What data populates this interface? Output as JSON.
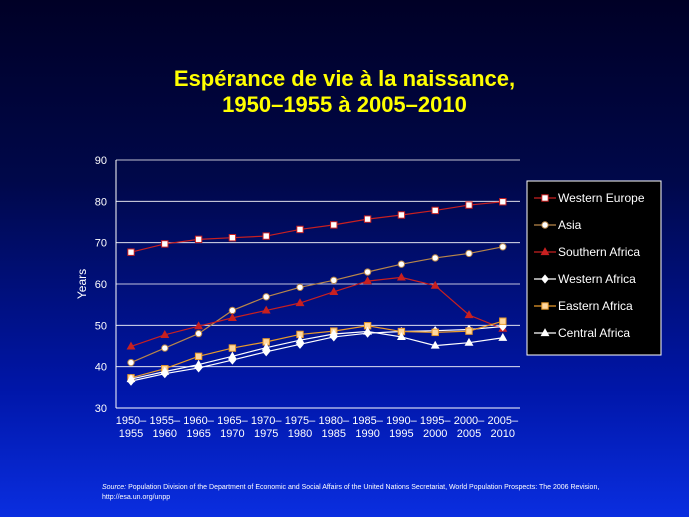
{
  "chart_data": {
    "type": "line",
    "title_line1": "Espérance de vie à la naissance,",
    "title_line2": "1950–1955 à 2005–2010",
    "xlabel": "",
    "ylabel": "Years",
    "ylim": [
      30,
      90
    ],
    "yticks": [
      30,
      40,
      50,
      60,
      70,
      80,
      90
    ],
    "grid": true,
    "legend": "right",
    "categories": [
      [
        "1950–",
        "1955"
      ],
      [
        "1955–",
        "1960"
      ],
      [
        "1960–",
        "1965"
      ],
      [
        "1965–",
        "1970"
      ],
      [
        "1970–",
        "1975"
      ],
      [
        "1975–",
        "1980"
      ],
      [
        "1980–",
        "1985"
      ],
      [
        "1985–",
        "1990"
      ],
      [
        "1990–",
        "1995"
      ],
      [
        "1995–",
        "2000"
      ],
      [
        "2000–",
        "2005"
      ],
      [
        "2005–",
        "2010"
      ]
    ],
    "series": [
      {
        "name": "Western Europe",
        "marker": "square",
        "color": "#c82020",
        "fill": "#ffffff",
        "values": [
          67.7,
          69.7,
          70.8,
          71.2,
          71.6,
          73.2,
          74.3,
          75.7,
          76.7,
          77.8,
          79.1,
          79.9
        ]
      },
      {
        "name": "Asia",
        "marker": "circle",
        "color": "#b8864a",
        "fill": "#ffffff",
        "values": [
          41.0,
          44.5,
          48.0,
          53.6,
          56.9,
          59.2,
          60.9,
          62.9,
          64.8,
          66.3,
          67.4,
          69.0
        ]
      },
      {
        "name": "Southern Africa",
        "marker": "triangle",
        "color": "#c82020",
        "fill": "#c82020",
        "values": [
          44.9,
          47.7,
          49.8,
          51.8,
          53.6,
          55.4,
          58.1,
          60.7,
          61.6,
          59.6,
          52.5,
          49.2
        ]
      },
      {
        "name": "Western Africa",
        "marker": "diamond",
        "color": "#ffffff",
        "fill": "#ffffff",
        "values": [
          36.5,
          38.3,
          39.7,
          41.6,
          43.6,
          45.4,
          47.2,
          48.1,
          48.5,
          48.7,
          49.0,
          49.7
        ]
      },
      {
        "name": "Eastern Africa",
        "marker": "square",
        "color": "#e89a2a",
        "fill": "#ffd8a0",
        "values": [
          37.3,
          39.5,
          42.5,
          44.5,
          46.0,
          47.8,
          48.6,
          49.9,
          48.5,
          48.3,
          48.6,
          51.0
        ]
      },
      {
        "name": "Central Africa",
        "marker": "triangle",
        "color": "#ffffff",
        "fill": "#ffffff",
        "values": [
          37.0,
          38.8,
          40.5,
          42.5,
          44.6,
          46.4,
          47.9,
          48.5,
          47.2,
          45.1,
          45.8,
          47.0
        ]
      }
    ]
  },
  "source": {
    "label": "Source:",
    "text": "Population Division of the Department of Economic and Social Affairs of the United Nations Secretariat, World Population Prospects: The 2006 Revision, http://esa.un.org/unpp"
  }
}
